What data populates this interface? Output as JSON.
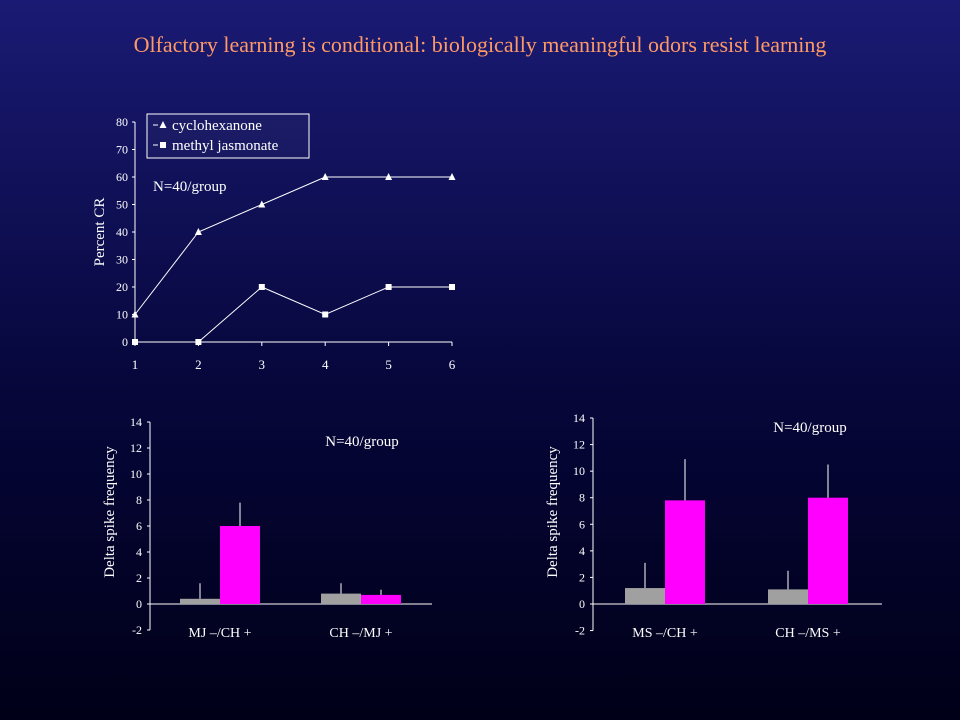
{
  "title": "Olfactory learning is conditional: biologically meaningful odors resist learning",
  "colors": {
    "background_top": "#1a1a74",
    "background_bottom": "#000018",
    "title": "#ff9966",
    "text": "#ffffff",
    "bar_gray": "#a0a0a0",
    "bar_magenta": "#ff00ff",
    "axis": "#ffffff"
  },
  "chart_data": [
    {
      "type": "line",
      "ylabel": "Percent CR",
      "xlabel": "",
      "x": [
        1,
        2,
        3,
        4,
        5,
        6
      ],
      "x_tick_labels": [
        "1",
        "2",
        "3",
        "4",
        "5",
        "6"
      ],
      "y_ticks": [
        0,
        10,
        20,
        30,
        40,
        50,
        60,
        70,
        80
      ],
      "ylim": [
        0,
        80
      ],
      "annotation": "N=40/group",
      "legend_position": "top-left",
      "grid": false,
      "series": [
        {
          "name": "cyclohexanone",
          "marker": "triangle",
          "values": [
            10,
            40,
            50,
            60,
            60,
            60
          ]
        },
        {
          "name": "methyl jasmonate",
          "marker": "square",
          "values": [
            0,
            0,
            20,
            10,
            20,
            20
          ]
        }
      ]
    },
    {
      "type": "bar",
      "ylabel": "Delta spike frequency",
      "xlabel": "",
      "categories": [
        "MJ –/CH +",
        "CH –/MJ +"
      ],
      "y_ticks": [
        -2,
        0,
        2,
        4,
        6,
        8,
        10,
        12,
        14
      ],
      "ylim": [
        -2,
        14
      ],
      "annotation": "N=40/group",
      "grid": false,
      "series": [
        {
          "values": [
            0.4,
            0.8
          ],
          "errors": [
            1.2,
            0.8
          ],
          "color": "#a0a0a0"
        },
        {
          "values": [
            6.0,
            0.7
          ],
          "errors": [
            1.8,
            0.4
          ],
          "color": "#ff00ff"
        }
      ]
    },
    {
      "type": "bar",
      "ylabel": "Delta spike frequency",
      "xlabel": "",
      "categories": [
        "MS –/CH +",
        "CH –/MS +"
      ],
      "y_ticks": [
        -2,
        0,
        2,
        4,
        6,
        8,
        10,
        12,
        14
      ],
      "ylim": [
        -2,
        14
      ],
      "annotation": "N=40/group",
      "grid": false,
      "series": [
        {
          "values": [
            1.2,
            1.1
          ],
          "errors": [
            1.9,
            1.4
          ],
          "color": "#a0a0a0"
        },
        {
          "values": [
            7.8,
            8.0
          ],
          "errors": [
            3.1,
            2.5
          ],
          "color": "#ff00ff"
        }
      ]
    }
  ]
}
